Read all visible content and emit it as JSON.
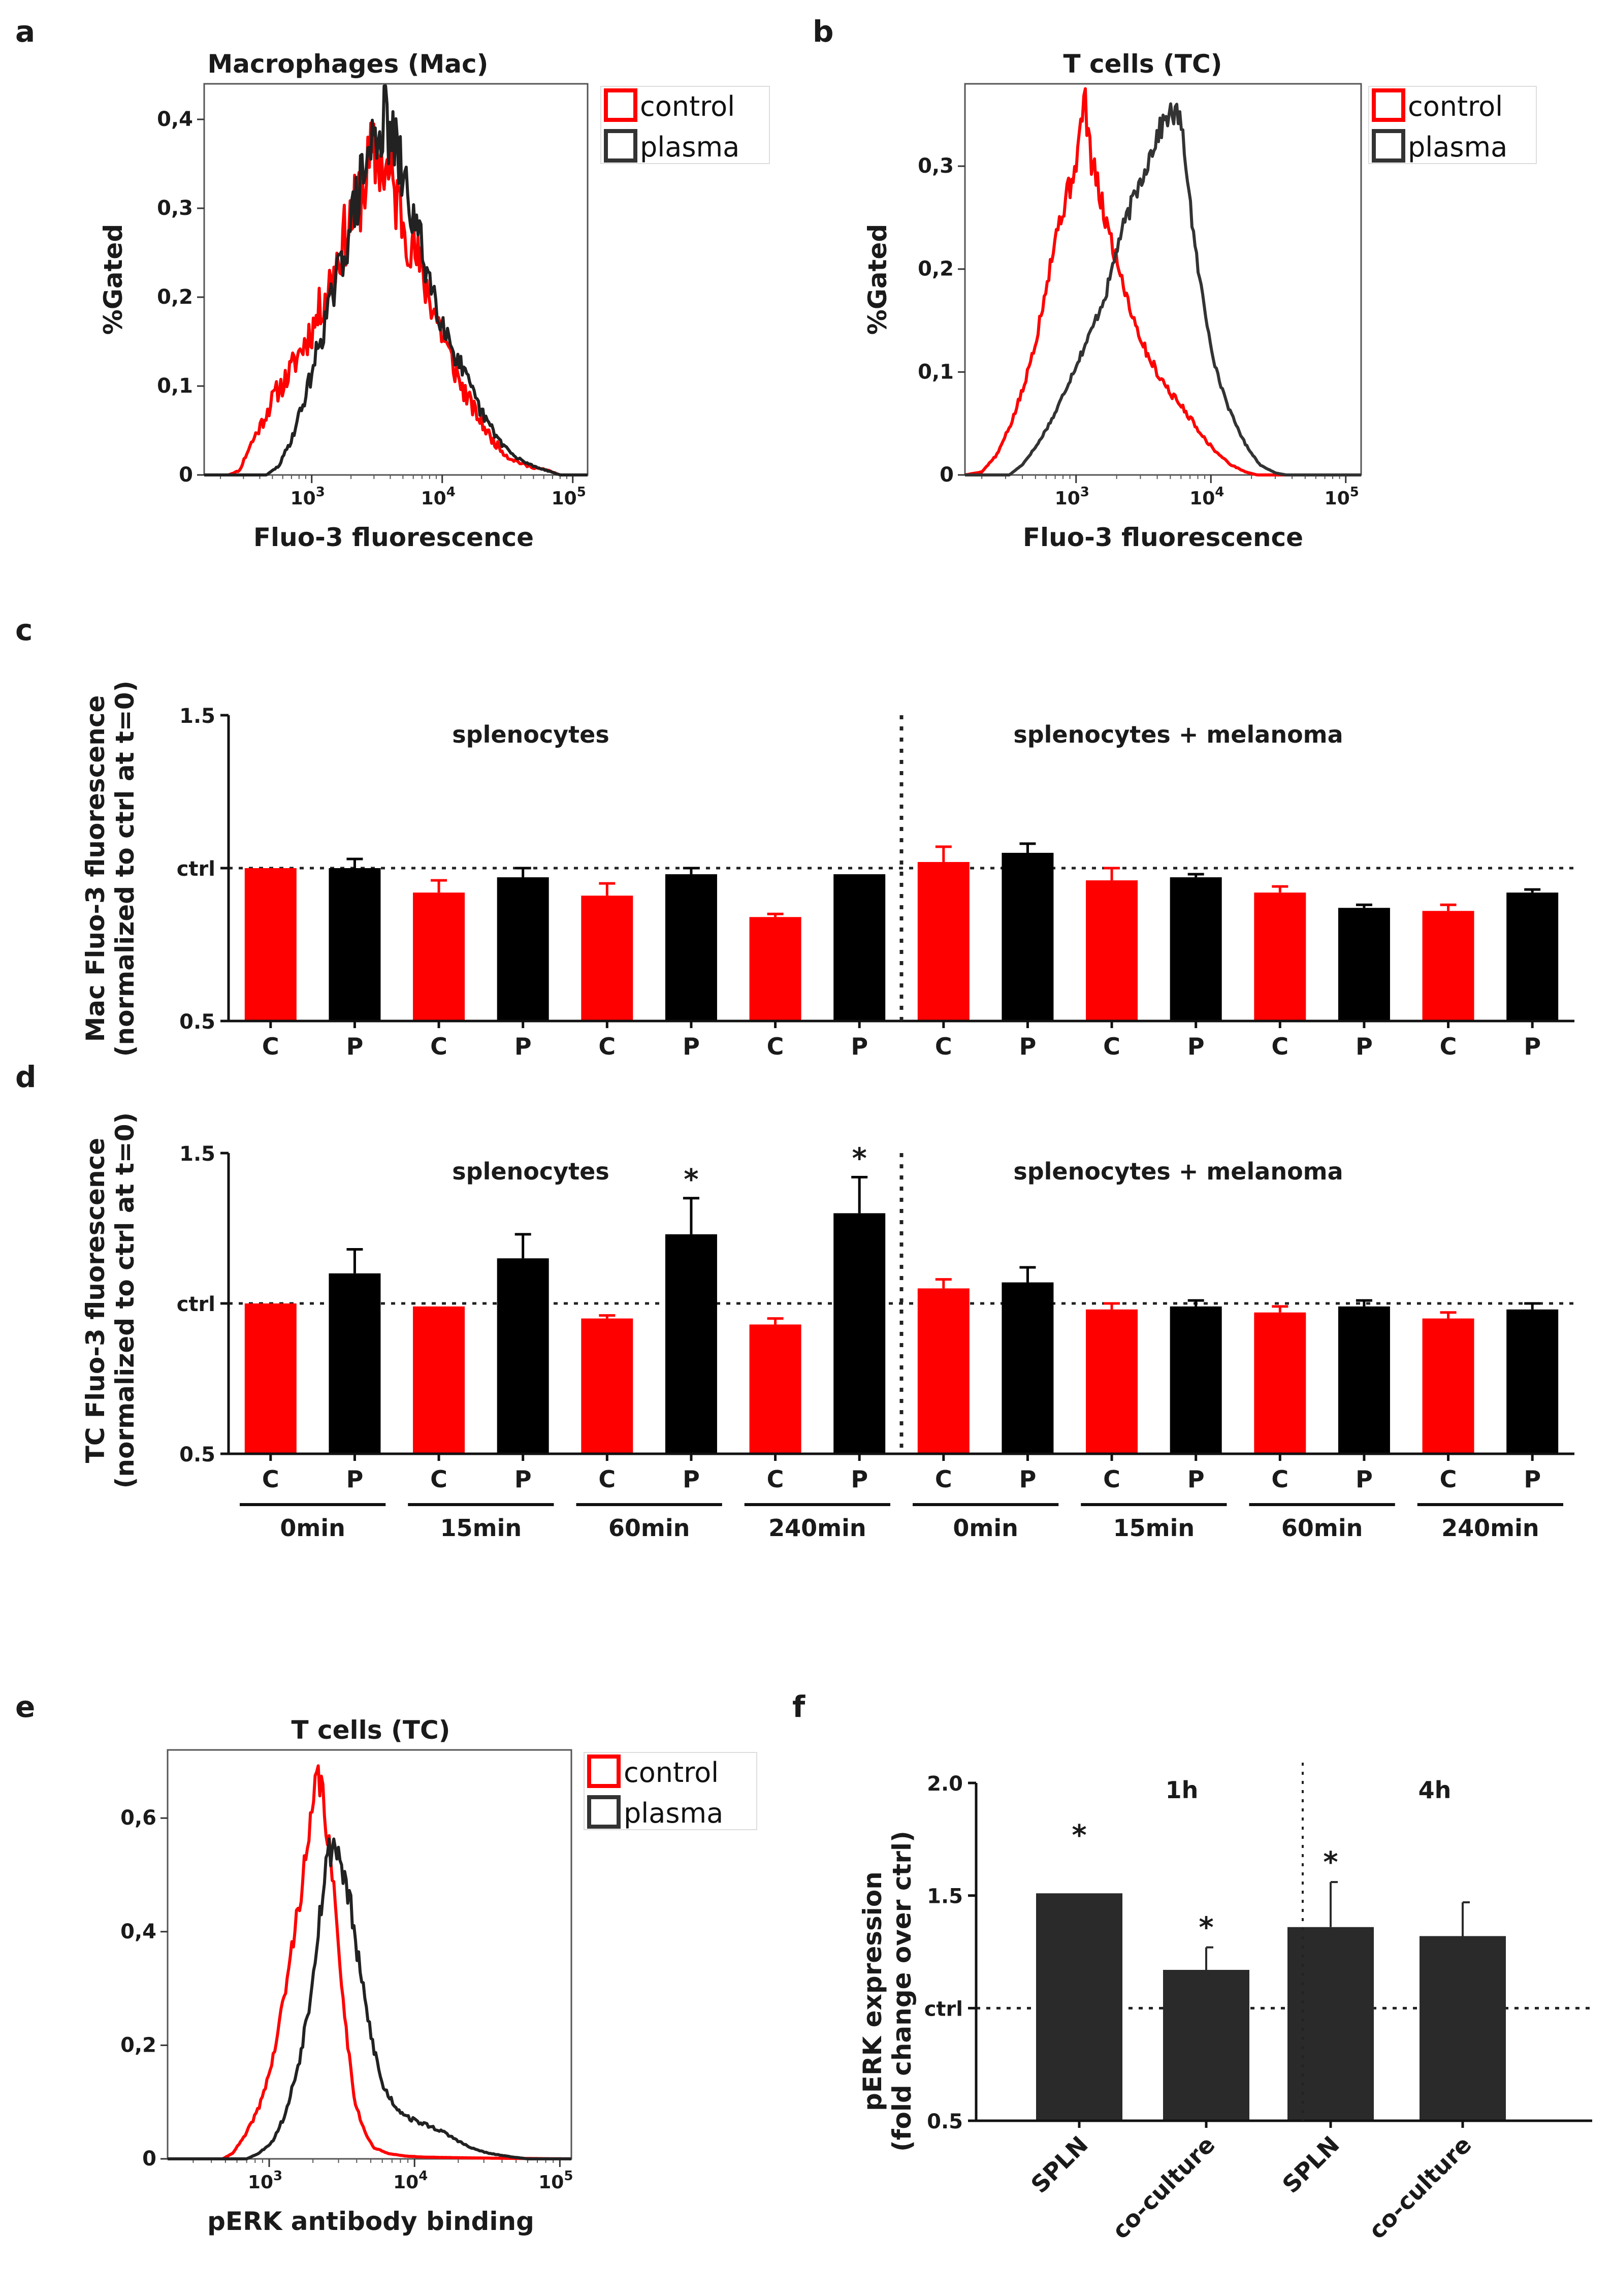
{
  "colors": {
    "red": "#ff0000",
    "black": "#000000",
    "dark": "#333333",
    "frame": "#555555"
  },
  "panel_a": {
    "letter": "a",
    "chart_data": {
      "type": "line",
      "title": "Macrophages (Mac)",
      "xlabel": "Fluo-3 fluorescence",
      "ylabel": "%Gated",
      "x_scale": "log",
      "xlim": [
        150,
        130000
      ],
      "ylim": [
        0,
        0.44
      ],
      "x_ticks": [
        {
          "v": 1000,
          "base": "10",
          "exp": "3"
        },
        {
          "v": 10000,
          "base": "10",
          "exp": "4"
        },
        {
          "v": 100000,
          "base": "10",
          "exp": "5"
        }
      ],
      "y_ticks": [
        {
          "v": 0,
          "label": "0"
        },
        {
          "v": 0.1,
          "label": "0,1"
        },
        {
          "v": 0.2,
          "label": "0,2"
        },
        {
          "v": 0.3,
          "label": "0,3"
        },
        {
          "v": 0.4,
          "label": "0,4"
        }
      ],
      "legend": [
        "control",
        "plasma"
      ],
      "series": [
        {
          "name": "control",
          "color": "#ff0000",
          "seed": 11,
          "noise": 0.28,
          "points": [
            [
              150,
              0
            ],
            [
              230,
              0
            ],
            [
              280,
              0.005
            ],
            [
              330,
              0.03
            ],
            [
              420,
              0.06
            ],
            [
              520,
              0.09
            ],
            [
              650,
              0.11
            ],
            [
              820,
              0.14
            ],
            [
              1050,
              0.17
            ],
            [
              1400,
              0.22
            ],
            [
              1800,
              0.27
            ],
            [
              2300,
              0.31
            ],
            [
              2800,
              0.35
            ],
            [
              3300,
              0.36
            ],
            [
              4000,
              0.33
            ],
            [
              5000,
              0.29
            ],
            [
              6500,
              0.24
            ],
            [
              8500,
              0.19
            ],
            [
              11000,
              0.14
            ],
            [
              14000,
              0.1
            ],
            [
              18000,
              0.07
            ],
            [
              24000,
              0.04
            ],
            [
              32000,
              0.02
            ],
            [
              45000,
              0.01
            ],
            [
              65000,
              0.005
            ],
            [
              80000,
              0
            ],
            [
              130000,
              0
            ]
          ]
        },
        {
          "name": "plasma",
          "color": "#222222",
          "seed": 29,
          "noise": 0.22,
          "points": [
            [
              150,
              0
            ],
            [
              450,
              0
            ],
            [
              560,
              0.01
            ],
            [
              700,
              0.04
            ],
            [
              900,
              0.09
            ],
            [
              1150,
              0.15
            ],
            [
              1500,
              0.21
            ],
            [
              1900,
              0.27
            ],
            [
              2400,
              0.33
            ],
            [
              3000,
              0.38
            ],
            [
              3600,
              0.4
            ],
            [
              4300,
              0.37
            ],
            [
              5300,
              0.32
            ],
            [
              6800,
              0.26
            ],
            [
              8800,
              0.2
            ],
            [
              11500,
              0.15
            ],
            [
              15000,
              0.11
            ],
            [
              20000,
              0.07
            ],
            [
              27000,
              0.04
            ],
            [
              36000,
              0.02
            ],
            [
              50000,
              0.01
            ],
            [
              70000,
              0.003
            ],
            [
              80000,
              0
            ],
            [
              130000,
              0
            ]
          ]
        }
      ]
    }
  },
  "panel_b": {
    "letter": "b",
    "chart_data": {
      "type": "line",
      "title": "T cells (TC)",
      "xlabel": "Fluo-3 fluorescence",
      "ylabel": "%Gated",
      "x_scale": "log",
      "xlim": [
        150,
        130000
      ],
      "ylim": [
        0,
        0.38
      ],
      "x_ticks": [
        {
          "v": 1000,
          "base": "10",
          "exp": "3"
        },
        {
          "v": 10000,
          "base": "10",
          "exp": "4"
        },
        {
          "v": 100000,
          "base": "10",
          "exp": "5"
        }
      ],
      "y_ticks": [
        {
          "v": 0,
          "label": "0"
        },
        {
          "v": 0.1,
          "label": "0,1"
        },
        {
          "v": 0.2,
          "label": "0,2"
        },
        {
          "v": 0.3,
          "label": "0,3"
        }
      ],
      "legend": [
        "control",
        "plasma"
      ],
      "series": [
        {
          "name": "control",
          "color": "#ff0000",
          "seed": 5,
          "noise": 0.1,
          "points": [
            [
              150,
              0
            ],
            [
              200,
              0.003
            ],
            [
              260,
              0.02
            ],
            [
              330,
              0.05
            ],
            [
              420,
              0.09
            ],
            [
              520,
              0.14
            ],
            [
              630,
              0.2
            ],
            [
              760,
              0.25
            ],
            [
              900,
              0.28
            ],
            [
              1050,
              0.32
            ],
            [
              1150,
              0.37
            ],
            [
              1280,
              0.31
            ],
            [
              1500,
              0.27
            ],
            [
              1800,
              0.23
            ],
            [
              2200,
              0.19
            ],
            [
              2700,
              0.15
            ],
            [
              3300,
              0.12
            ],
            [
              4000,
              0.1
            ],
            [
              5000,
              0.08
            ],
            [
              6200,
              0.065
            ],
            [
              7500,
              0.05
            ],
            [
              9000,
              0.035
            ],
            [
              11000,
              0.022
            ],
            [
              14000,
              0.01
            ],
            [
              18000,
              0.003
            ],
            [
              22000,
              0
            ],
            [
              130000,
              0
            ]
          ]
        },
        {
          "name": "plasma",
          "color": "#333333",
          "seed": 17,
          "noise": 0.07,
          "points": [
            [
              150,
              0
            ],
            [
              320,
              0
            ],
            [
              400,
              0.01
            ],
            [
              520,
              0.03
            ],
            [
              700,
              0.06
            ],
            [
              950,
              0.1
            ],
            [
              1300,
              0.14
            ],
            [
              1700,
              0.18
            ],
            [
              2100,
              0.23
            ],
            [
              2700,
              0.27
            ],
            [
              3300,
              0.3
            ],
            [
              4000,
              0.33
            ],
            [
              4800,
              0.35
            ],
            [
              5800,
              0.35
            ],
            [
              6600,
              0.3
            ],
            [
              7600,
              0.22
            ],
            [
              9000,
              0.16
            ],
            [
              11000,
              0.1
            ],
            [
              14000,
              0.06
            ],
            [
              18000,
              0.03
            ],
            [
              23000,
              0.01
            ],
            [
              30000,
              0.002
            ],
            [
              36000,
              0
            ],
            [
              130000,
              0
            ]
          ]
        }
      ]
    }
  },
  "panel_c": {
    "letter": "c",
    "chart_data": {
      "type": "bar",
      "ylabel_lines": [
        "Mac Fluo-3 fluorescence",
        "(normalized to ctrl at t=0)"
      ],
      "ylim": [
        0.5,
        1.5
      ],
      "y_ticks": [
        {
          "v": 0.5,
          "label": "0.5"
        },
        {
          "v": 1.0,
          "label": "ctrl"
        },
        {
          "v": 1.5,
          "label": "1.5"
        }
      ],
      "ctrl_value": 1.0,
      "sections": [
        "splenocytes",
        "splenocytes + melanoma"
      ],
      "labels": [
        "C",
        "P",
        "C",
        "P",
        "C",
        "P",
        "C",
        "P",
        "C",
        "P",
        "C",
        "P",
        "C",
        "P",
        "C",
        "P"
      ],
      "values": [
        1.0,
        1.0,
        0.92,
        0.97,
        0.91,
        0.98,
        0.84,
        0.98,
        1.02,
        1.05,
        0.96,
        0.97,
        0.92,
        0.87,
        0.86,
        0.92
      ],
      "errors": [
        0,
        0.03,
        0.04,
        0.03,
        0.04,
        0.02,
        0.01,
        0,
        0.05,
        0.03,
        0.04,
        0.01,
        0.02,
        0.01,
        0.02,
        0.01
      ],
      "series_colors": [
        "#ff0000",
        "#000000"
      ]
    }
  },
  "panel_d": {
    "letter": "d",
    "chart_data": {
      "type": "bar",
      "ylabel_lines": [
        "TC Fluo-3 fluorescence",
        "(normalized to ctrl at t=0)"
      ],
      "ylim": [
        0.5,
        1.5
      ],
      "y_ticks": [
        {
          "v": 0.5,
          "label": "0.5"
        },
        {
          "v": 1.0,
          "label": "ctrl"
        },
        {
          "v": 1.5,
          "label": "1.5"
        }
      ],
      "ctrl_value": 1.0,
      "sections": [
        "splenocytes",
        "splenocytes + melanoma"
      ],
      "labels": [
        "C",
        "P",
        "C",
        "P",
        "C",
        "P",
        "C",
        "P",
        "C",
        "P",
        "C",
        "P",
        "C",
        "P",
        "C",
        "P"
      ],
      "values": [
        1.0,
        1.1,
        0.99,
        1.15,
        0.95,
        1.23,
        0.93,
        1.3,
        1.05,
        1.07,
        0.98,
        0.99,
        0.97,
        0.99,
        0.95,
        0.98
      ],
      "errors": [
        0,
        0.08,
        0,
        0.08,
        0.01,
        0.12,
        0.02,
        0.12,
        0.03,
        0.05,
        0.02,
        0.02,
        0.02,
        0.02,
        0.02,
        0.02
      ],
      "significance": [
        "",
        "",
        "",
        "",
        "",
        "*",
        "",
        "*",
        "",
        "",
        "",
        "",
        "",
        "",
        "",
        ""
      ],
      "time_groups": [
        "0min",
        "15min",
        "60min",
        "240min",
        "0min",
        "15min",
        "60min",
        "240min"
      ],
      "series_colors": [
        "#ff0000",
        "#000000"
      ]
    }
  },
  "panel_e": {
    "letter": "e",
    "chart_data": {
      "type": "line",
      "title": "T cells (TC)",
      "xlabel": "pERK antibody binding",
      "ylabel": "",
      "x_scale": "log",
      "xlim": [
        200,
        120000
      ],
      "ylim": [
        0,
        0.72
      ],
      "x_ticks": [
        {
          "v": 1000,
          "base": "10",
          "exp": "3"
        },
        {
          "v": 10000,
          "base": "10",
          "exp": "4"
        },
        {
          "v": 100000,
          "base": "10",
          "exp": "5"
        }
      ],
      "y_ticks": [
        {
          "v": 0,
          "label": "0"
        },
        {
          "v": 0.2,
          "label": "0,2"
        },
        {
          "v": 0.4,
          "label": "0,4"
        },
        {
          "v": 0.6,
          "label": "0,6"
        }
      ],
      "legend": [
        "control",
        "plasma"
      ],
      "series": [
        {
          "name": "control",
          "color": "#ff0000",
          "seed": 41,
          "noise": 0.1,
          "points": [
            [
              200,
              0
            ],
            [
              480,
              0
            ],
            [
              560,
              0.01
            ],
            [
              680,
              0.04
            ],
            [
              850,
              0.09
            ],
            [
              1050,
              0.17
            ],
            [
              1300,
              0.3
            ],
            [
              1600,
              0.45
            ],
            [
              1900,
              0.57
            ],
            [
              2150,
              0.68
            ],
            [
              2350,
              0.64
            ],
            [
              2650,
              0.52
            ],
            [
              3000,
              0.38
            ],
            [
              3400,
              0.22
            ],
            [
              3900,
              0.1
            ],
            [
              4500,
              0.05
            ],
            [
              5200,
              0.02
            ],
            [
              6500,
              0.01
            ],
            [
              8500,
              0.005
            ],
            [
              12000,
              0.003
            ],
            [
              20000,
              0.002
            ],
            [
              40000,
              0.001
            ],
            [
              120000,
              0
            ]
          ]
        },
        {
          "name": "plasma",
          "color": "#222222",
          "seed": 53,
          "noise": 0.12,
          "points": [
            [
              200,
              0
            ],
            [
              700,
              0
            ],
            [
              850,
              0.01
            ],
            [
              1050,
              0.03
            ],
            [
              1300,
              0.08
            ],
            [
              1600,
              0.17
            ],
            [
              1900,
              0.28
            ],
            [
              2200,
              0.42
            ],
            [
              2500,
              0.53
            ],
            [
              2800,
              0.56
            ],
            [
              3150,
              0.52
            ],
            [
              3600,
              0.45
            ],
            [
              4200,
              0.33
            ],
            [
              5000,
              0.22
            ],
            [
              6000,
              0.13
            ],
            [
              7500,
              0.09
            ],
            [
              9500,
              0.07
            ],
            [
              12000,
              0.06
            ],
            [
              15000,
              0.05
            ],
            [
              19000,
              0.035
            ],
            [
              24000,
              0.02
            ],
            [
              32000,
              0.01
            ],
            [
              45000,
              0.004
            ],
            [
              60000,
              0
            ],
            [
              120000,
              0
            ]
          ]
        }
      ]
    }
  },
  "panel_f": {
    "letter": "f",
    "chart_data": {
      "type": "bar",
      "ylabel_lines": [
        "pERK expression",
        "(fold change over ctrl)"
      ],
      "ylim": [
        0.5,
        2.0
      ],
      "y_ticks": [
        {
          "v": 0.5,
          "label": "0.5"
        },
        {
          "v": 1.0,
          "label": "ctrl"
        },
        {
          "v": 1.5,
          "label": "1.5"
        },
        {
          "v": 2.0,
          "label": "2.0"
        }
      ],
      "ctrl_value": 1.0,
      "sections": [
        "1h",
        "4h"
      ],
      "categories": [
        "SPLN",
        "co-culture",
        "SPLN",
        "co-culture"
      ],
      "values": [
        1.51,
        1.17,
        1.36,
        1.32
      ],
      "errors": [
        0,
        0.1,
        0.2,
        0.15
      ],
      "significance": [
        "*",
        "*",
        "*",
        ""
      ],
      "color": "#2a2a2a"
    }
  }
}
